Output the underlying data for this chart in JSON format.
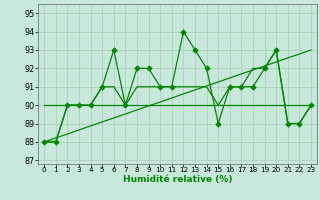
{
  "xlabel": "Humidité relative (%)",
  "background_color": "#c8e8dc",
  "grid_color": "#aaccbb",
  "line_color": "#008800",
  "xlim": [
    -0.5,
    23.5
  ],
  "ylim": [
    86.8,
    95.5
  ],
  "yticks": [
    87,
    88,
    89,
    90,
    91,
    92,
    93,
    94,
    95
  ],
  "xticks": [
    0,
    1,
    2,
    3,
    4,
    5,
    6,
    7,
    8,
    9,
    10,
    11,
    12,
    13,
    14,
    15,
    16,
    17,
    18,
    19,
    20,
    21,
    22,
    23
  ],
  "series_jagged": [
    88,
    88,
    90,
    90,
    90,
    91,
    93,
    90,
    92,
    92,
    91,
    91,
    94,
    93,
    92,
    89,
    91,
    91,
    91,
    92,
    93,
    89,
    89,
    90
  ],
  "series_diagonal": [
    88,
    88.22,
    88.43,
    88.65,
    88.87,
    89.09,
    89.3,
    89.52,
    89.74,
    89.96,
    90.17,
    90.39,
    90.61,
    90.83,
    91.04,
    91.26,
    91.48,
    91.7,
    91.91,
    92.13,
    92.35,
    92.57,
    92.78,
    93.0
  ],
  "series_flat90": [
    90,
    90,
    90,
    90,
    90,
    90,
    90,
    90,
    90,
    90,
    90,
    90,
    90,
    90,
    90,
    90,
    90,
    90,
    90,
    90,
    90,
    90,
    90,
    90
  ],
  "series_smooth": [
    88,
    88,
    90,
    90,
    90,
    91,
    91,
    90,
    91,
    91,
    91,
    91,
    91,
    91,
    91,
    90,
    91,
    91,
    92,
    92,
    93,
    89,
    89,
    90
  ]
}
